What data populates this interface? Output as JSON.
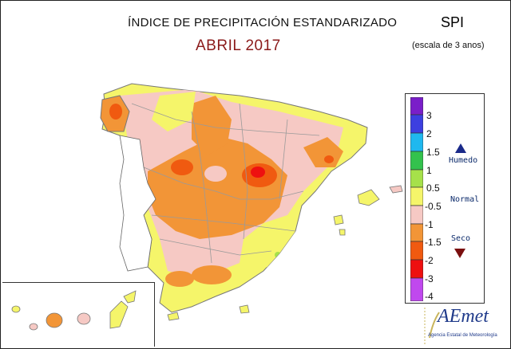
{
  "header": {
    "title": "ÍNDICE DE PRECIPITACIÓN ESTANDARIZADO",
    "month": "ABRIL 2017",
    "index_abbr": "SPI",
    "scale_note": "(escala de 3 anos)"
  },
  "legend": {
    "ticks": [
      "3",
      "2",
      "1.5",
      "1",
      "0.5",
      "-0.5",
      "-1",
      "-1.5",
      "-2",
      "-3",
      "-4"
    ],
    "colors": [
      "#7a1ec9",
      "#3d3fe0",
      "#1fb8ef",
      "#33c24d",
      "#a6e14a",
      "#f5f56a",
      "#f6c9c4",
      "#f29537",
      "#f05a10",
      "#ee1010",
      "#c048ee"
    ],
    "categories": {
      "humid": "Humedo",
      "normal": "Normal",
      "dry": "Seco"
    },
    "icons": {
      "humid": "triangle-up-icon",
      "dry": "triangle-down-icon"
    }
  },
  "logo": {
    "name": "AEmet",
    "subtitle": "Agencia Estatal de Meteorología"
  }
}
